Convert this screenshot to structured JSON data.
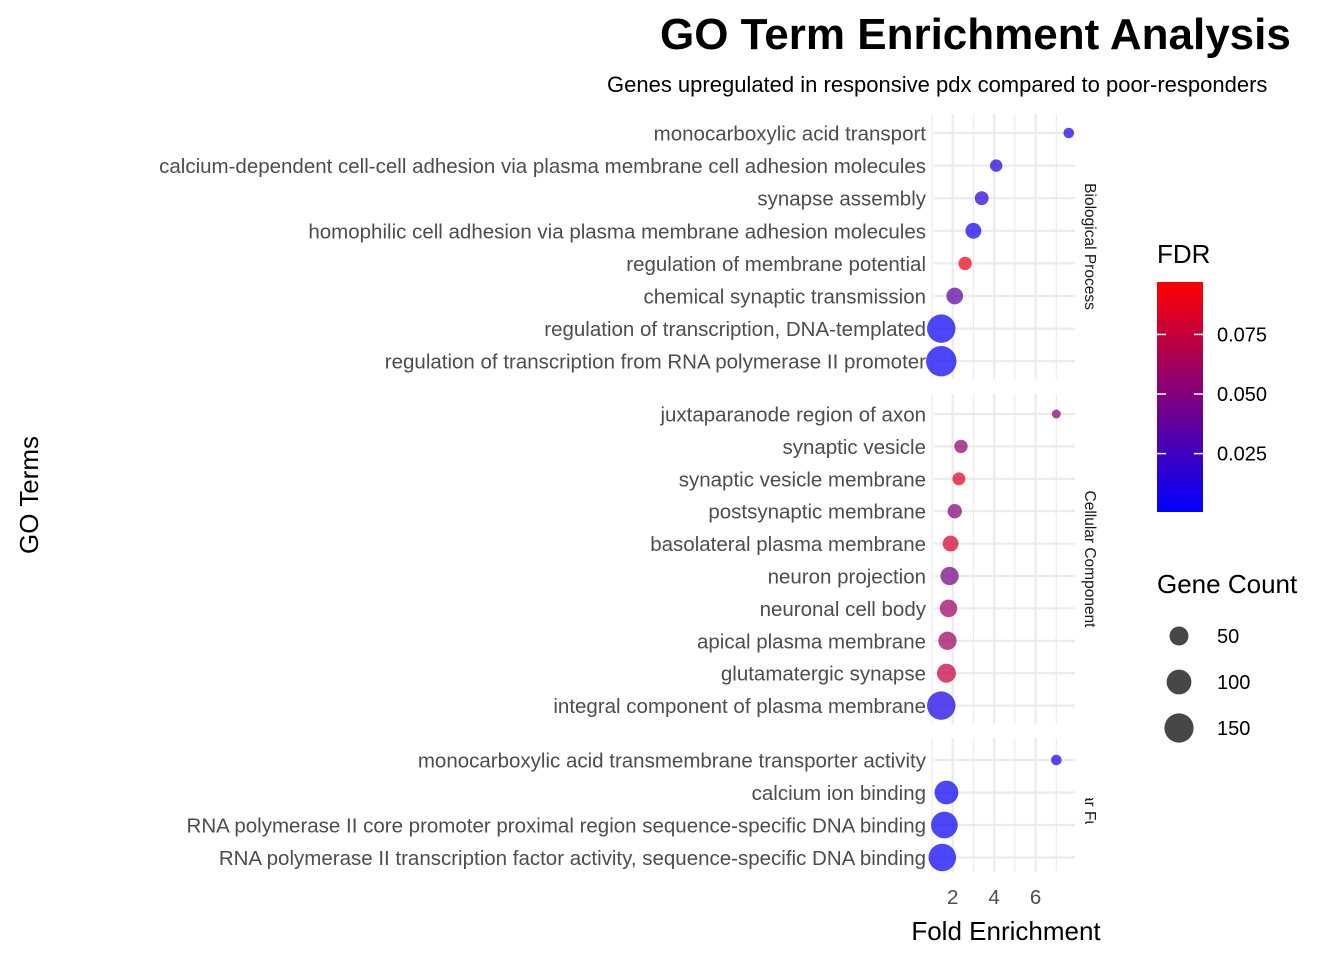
{
  "chart_data": {
    "type": "scatter",
    "title": "GO Term Enrichment Analysis",
    "subtitle": "Genes upregulated in responsive pdx compared to poor-responders",
    "xlabel": "Fold Enrichment",
    "ylabel": "GO Terms",
    "x_ticks": [
      2,
      4,
      6
    ],
    "xlim": [
      1.1,
      7.9
    ],
    "grid": true,
    "colors": {
      "low": "#0000ff",
      "high": "#ff0000",
      "grid": "#ebebeb",
      "axis_text": "#4d4d4d"
    },
    "legend": {
      "position": "right",
      "color": {
        "title": "FDR",
        "range": [
          0.0005,
          0.097
        ],
        "ticks": [
          0.025,
          0.05,
          0.075
        ],
        "tick_labels": [
          "0.025",
          "0.050",
          "0.075"
        ]
      },
      "size": {
        "title": "Gene Count",
        "values": [
          50,
          100,
          150
        ],
        "labels": [
          "50",
          "100",
          "150"
        ]
      }
    },
    "facets": [
      {
        "name": "Biological Process",
        "terms": [
          {
            "term": "monocarboxylic acid transport",
            "fold_enrichment": 7.6,
            "fdr": 0.01,
            "gene_count": 8
          },
          {
            "term": "calcium-dependent cell-cell adhesion via plasma membrane cell adhesion molecules",
            "fold_enrichment": 4.1,
            "fdr": 0.012,
            "gene_count": 14
          },
          {
            "term": "synapse assembly",
            "fold_enrichment": 3.4,
            "fdr": 0.015,
            "gene_count": 20
          },
          {
            "term": "homophilic cell adhesion via plasma membrane adhesion molecules",
            "fold_enrichment": 3.0,
            "fdr": 0.005,
            "gene_count": 30
          },
          {
            "term": "regulation of membrane potential",
            "fold_enrichment": 2.6,
            "fdr": 0.09,
            "gene_count": 18
          },
          {
            "term": "chemical synaptic transmission",
            "fold_enrichment": 2.1,
            "fdr": 0.035,
            "gene_count": 35
          },
          {
            "term": "regulation of transcription, DNA-templated",
            "fold_enrichment": 1.45,
            "fdr": 0.004,
            "gene_count": 140
          },
          {
            "term": "regulation of transcription from RNA polymerase II promoter",
            "fold_enrichment": 1.45,
            "fdr": 0.004,
            "gene_count": 165
          }
        ]
      },
      {
        "name": "Cellular Component",
        "terms": [
          {
            "term": "juxtaparanode region of axon",
            "fold_enrichment": 7.0,
            "fdr": 0.05,
            "gene_count": 4
          },
          {
            "term": "synaptic vesicle",
            "fold_enrichment": 2.4,
            "fdr": 0.055,
            "gene_count": 18
          },
          {
            "term": "synaptic vesicle membrane",
            "fold_enrichment": 2.3,
            "fdr": 0.085,
            "gene_count": 16
          },
          {
            "term": "postsynaptic membrane",
            "fold_enrichment": 2.1,
            "fdr": 0.05,
            "gene_count": 22
          },
          {
            "term": "basolateral plasma membrane",
            "fold_enrichment": 1.9,
            "fdr": 0.08,
            "gene_count": 30
          },
          {
            "term": "neuron projection",
            "fold_enrichment": 1.85,
            "fdr": 0.045,
            "gene_count": 45
          },
          {
            "term": "neuronal cell body",
            "fold_enrichment": 1.8,
            "fdr": 0.06,
            "gene_count": 40
          },
          {
            "term": "apical plasma membrane",
            "fold_enrichment": 1.75,
            "fdr": 0.06,
            "gene_count": 45
          },
          {
            "term": "glutamatergic synapse",
            "fold_enrichment": 1.7,
            "fdr": 0.075,
            "gene_count": 50
          },
          {
            "term": "integral component of plasma membrane",
            "fold_enrichment": 1.45,
            "fdr": 0.01,
            "gene_count": 140
          }
        ]
      },
      {
        "name": "Molecular Function",
        "terms": [
          {
            "term": "monocarboxylic acid transmembrane transporter activity",
            "fold_enrichment": 7.0,
            "fdr": 0.01,
            "gene_count": 8
          },
          {
            "term": "calcium ion binding",
            "fold_enrichment": 1.7,
            "fdr": 0.004,
            "gene_count": 90
          },
          {
            "term": "RNA polymerase II core promoter proximal region sequence-specific DNA binding",
            "fold_enrichment": 1.6,
            "fdr": 0.004,
            "gene_count": 120
          },
          {
            "term": "RNA polymerase II transcription factor activity, sequence-specific DNA binding",
            "fold_enrichment": 1.5,
            "fdr": 0.004,
            "gene_count": 130
          }
        ]
      }
    ]
  }
}
